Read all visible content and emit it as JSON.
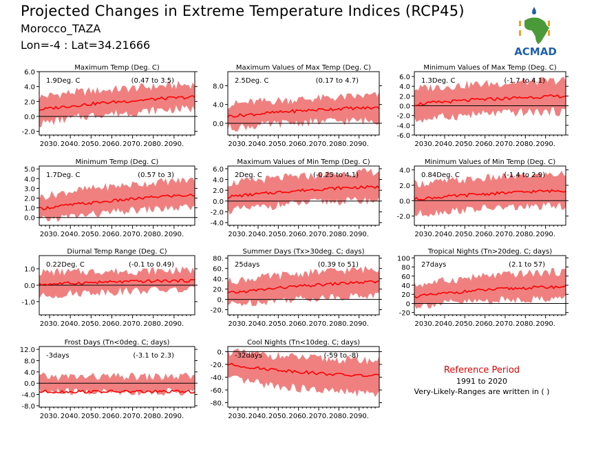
{
  "header": {
    "title": "Projected Changes in Extreme Temperature Indices (RCP45)",
    "subtitle": "Morocco_TAZA",
    "coords": "Lon=-4 : Lat=34.21666"
  },
  "logo": {
    "text": "ACMAD",
    "icon": "africa-map-icon"
  },
  "reference": {
    "title": "Reference Period",
    "period": "1991 to 2020",
    "note": "Very-Likely-Ranges are written in ( )"
  },
  "colors": {
    "band": "#f08080",
    "line": "#ff0000",
    "logo_green": "#4a9a3a",
    "logo_blue": "#1f5fa8",
    "logo_orange": "#f0a020"
  },
  "chart_data": [
    {
      "type": "area",
      "title": "Maximum Temp (Deg. C)",
      "value_label": "1.9Deg. C",
      "range_label": "(0.47 to 3.5)",
      "x_ticks": [
        "2030.",
        "2040.",
        "2050.",
        "2060.",
        "2070.",
        "2080.",
        "2090."
      ],
      "xlim": [
        2025,
        2100
      ],
      "y_ticks": [
        "-2.0",
        "0.0",
        "2.0",
        "4.0",
        "6.0"
      ],
      "ylim": [
        -2.5,
        6
      ],
      "series": [
        {
          "x": [
            2025,
            2040,
            2055,
            2070,
            2085,
            2100
          ],
          "mean": [
            0.9,
            1.4,
            1.8,
            2.1,
            2.4,
            2.6
          ],
          "lower": [
            -1.0,
            -0.3,
            0.3,
            0.5,
            0.9,
            1.0
          ],
          "upper": [
            2.6,
            3.2,
            3.5,
            3.8,
            4.1,
            4.3
          ]
        }
      ]
    },
    {
      "type": "area",
      "title": "Maximum Values of Max Temp (Deg. C)",
      "value_label": "2.5Deg. C",
      "range_label": "(0.17 to 4.7)",
      "x_ticks": [
        "2030.",
        "2040.",
        "2050.",
        "2060.",
        "2070.",
        "2080.",
        "2090."
      ],
      "xlim": [
        2025,
        2100
      ],
      "y_ticks": [
        "0.0",
        "4.0",
        "8.0"
      ],
      "ylim": [
        -2.5,
        11
      ],
      "series": [
        {
          "x": [
            2025,
            2040,
            2055,
            2070,
            2085,
            2100
          ],
          "mean": [
            1.5,
            2.0,
            2.5,
            2.9,
            3.2,
            3.3
          ],
          "lower": [
            -1.0,
            -0.5,
            0.0,
            0.3,
            0.5,
            0.5
          ],
          "upper": [
            4.0,
            4.6,
            5.0,
            5.3,
            5.6,
            6.0
          ]
        }
      ]
    },
    {
      "type": "area",
      "title": "Minimum Values of Max Temp (Deg. C)",
      "value_label": "1.3Deg. C",
      "range_label": "(-1.7 to 4.1)",
      "x_ticks": [
        "2030.",
        "2040.",
        "2050.",
        "2060.",
        "2070.",
        "2080.",
        "2090."
      ],
      "xlim": [
        2025,
        2100
      ],
      "y_ticks": [
        "-6.0",
        "-4.0",
        "-2.0",
        "0.0",
        "2.0",
        "4.0",
        "6.0"
      ],
      "ylim": [
        -6,
        7
      ],
      "series": [
        {
          "x": [
            2025,
            2040,
            2055,
            2070,
            2085,
            2100
          ],
          "mean": [
            0.3,
            0.8,
            1.2,
            1.5,
            1.8,
            2.0
          ],
          "lower": [
            -3.0,
            -2.3,
            -1.8,
            -1.5,
            -1.3,
            -1.2
          ],
          "upper": [
            3.5,
            4.0,
            4.4,
            4.7,
            5.0,
            5.2
          ]
        }
      ]
    },
    {
      "type": "area",
      "title": "Minimum Temp (Deg. C)",
      "value_label": "1.7Deg. C",
      "range_label": "(0.57 to 3)",
      "x_ticks": [
        "2030.",
        "2040.",
        "2050.",
        "2060.",
        "2070.",
        "2080.",
        "2090."
      ],
      "xlim": [
        2025,
        2100
      ],
      "y_ticks": [
        "0.0",
        "1.0",
        "2.0",
        "3.0",
        "4.0",
        "5.0"
      ],
      "ylim": [
        -0.8,
        5.3
      ],
      "series": [
        {
          "x": [
            2025,
            2040,
            2055,
            2070,
            2085,
            2100
          ],
          "mean": [
            0.9,
            1.3,
            1.6,
            1.9,
            2.2,
            2.3
          ],
          "lower": [
            -0.3,
            0.1,
            0.4,
            0.7,
            0.9,
            1.0
          ],
          "upper": [
            2.1,
            2.7,
            3.1,
            3.4,
            3.7,
            3.9
          ]
        }
      ]
    },
    {
      "type": "area",
      "title": "Maximum Values of Min Temp (Deg. C)",
      "value_label": "2Deg. C",
      "range_label": "(-0.25 to 4.1)",
      "x_ticks": [
        "2030.",
        "2040.",
        "2050.",
        "2060.",
        "2070.",
        "2080.",
        "2090."
      ],
      "xlim": [
        2025,
        2100
      ],
      "y_ticks": [
        "-4.0",
        "-2.0",
        "0.0",
        "2.0",
        "4.0",
        "6.0"
      ],
      "ylim": [
        -4.5,
        6.5
      ],
      "series": [
        {
          "x": [
            2025,
            2040,
            2055,
            2070,
            2085,
            2100
          ],
          "mean": [
            0.8,
            1.3,
            1.8,
            2.2,
            2.5,
            2.6
          ],
          "lower": [
            -1.8,
            -1.2,
            -0.6,
            -0.2,
            0.0,
            0.1
          ],
          "upper": [
            3.3,
            3.9,
            4.4,
            4.8,
            5.2,
            5.5
          ]
        }
      ]
    },
    {
      "type": "area",
      "title": "Minimum Values of Min Temp (Deg. C)",
      "value_label": "0.84Deg. C",
      "range_label": "(-1.4 to 2.9)",
      "x_ticks": [
        "2030.",
        "2040.",
        "2050.",
        "2060.",
        "2070.",
        "2080.",
        "2090."
      ],
      "xlim": [
        2025,
        2100
      ],
      "y_ticks": [
        "-2.0",
        "0.0",
        "2.0",
        "4.0"
      ],
      "ylim": [
        -3.2,
        4.5
      ],
      "series": [
        {
          "x": [
            2025,
            2040,
            2055,
            2070,
            2085,
            2100
          ],
          "mean": [
            0.2,
            0.5,
            0.8,
            1.0,
            1.2,
            1.3
          ],
          "lower": [
            -1.8,
            -1.4,
            -1.1,
            -0.9,
            -0.8,
            -0.7
          ],
          "upper": [
            2.2,
            2.5,
            2.8,
            3.1,
            3.3,
            3.5
          ]
        }
      ]
    },
    {
      "type": "area",
      "title": "Diurnal Temp Range (Deg. C)",
      "value_label": "0.22Deg. C",
      "range_label": "(-0.1 to 0.49)",
      "x_ticks": [
        "2030.",
        "2040.",
        "2050.",
        "2060.",
        "2070.",
        "2080.",
        "2090."
      ],
      "xlim": [
        2025,
        2100
      ],
      "y_ticks": [
        "-1.0",
        "0.0",
        "1.0"
      ],
      "ylim": [
        -1.8,
        1.8
      ],
      "series": [
        {
          "x": [
            2025,
            2040,
            2055,
            2070,
            2085,
            2100
          ],
          "mean": [
            0.05,
            0.12,
            0.18,
            0.22,
            0.26,
            0.28
          ],
          "lower": [
            -0.7,
            -0.5,
            -0.4,
            -0.35,
            -0.3,
            -0.3
          ],
          "upper": [
            0.8,
            0.8,
            0.85,
            0.85,
            0.9,
            0.9
          ]
        }
      ]
    },
    {
      "type": "area",
      "title": "Summer Days (Tx>30deg. C; days)",
      "value_label": "25days",
      "range_label": "(0.39 to 51)",
      "x_ticks": [
        "2030.",
        "2040.",
        "2050.",
        "2060.",
        "2070.",
        "2080.",
        "2090."
      ],
      "xlim": [
        2025,
        2100
      ],
      "y_ticks": [
        "-20.",
        "0.",
        "20.",
        "40.",
        "60.",
        "80."
      ],
      "ylim": [
        -30,
        85
      ],
      "series": [
        {
          "x": [
            2025,
            2040,
            2055,
            2070,
            2085,
            2100
          ],
          "mean": [
            12,
            18,
            24,
            28,
            32,
            34
          ],
          "lower": [
            -10,
            -5,
            0,
            3,
            6,
            8
          ],
          "upper": [
            35,
            42,
            48,
            53,
            57,
            60
          ]
        }
      ]
    },
    {
      "type": "area",
      "title": "Tropical Nights (Tn>20deg. C; days)",
      "value_label": "27days",
      "range_label": "(2.1 to 57)",
      "x_ticks": [
        "2030.",
        "2040.",
        "2050.",
        "2060.",
        "2070.",
        "2080.",
        "2090."
      ],
      "xlim": [
        2025,
        2100
      ],
      "y_ticks": [
        "-20",
        "0",
        "20",
        "40",
        "60",
        "80",
        "100"
      ],
      "ylim": [
        -25,
        105
      ],
      "series": [
        {
          "x": [
            2025,
            2040,
            2055,
            2070,
            2085,
            2100
          ],
          "mean": [
            15,
            22,
            28,
            32,
            35,
            37
          ],
          "lower": [
            -5,
            0,
            4,
            8,
            10,
            12
          ],
          "upper": [
            40,
            50,
            58,
            63,
            67,
            70
          ]
        }
      ]
    },
    {
      "type": "area",
      "title": "Frost Days (Tn<0deg. C; days)",
      "value_label": "-3days",
      "range_label": "(-3.1 to 2.3)",
      "x_ticks": [
        "2030.",
        "2040.",
        "2050.",
        "2060.",
        "2070.",
        "2080.",
        "2090."
      ],
      "xlim": [
        2025,
        2100
      ],
      "y_ticks": [
        "-8.0",
        "-4.0",
        "0.0",
        "4.0",
        "8.0",
        "12.0"
      ],
      "ylim": [
        -8.5,
        13
      ],
      "series": [
        {
          "x": [
            2025,
            2040,
            2055,
            2070,
            2085,
            2100
          ],
          "mean": [
            -3,
            -3,
            -3,
            -3,
            -3,
            -3
          ],
          "lower": [
            -3.1,
            -3.1,
            -3.1,
            -3.1,
            -3.1,
            -3.1
          ],
          "upper": [
            2.3,
            2.3,
            2.3,
            2.3,
            2.3,
            2.3
          ]
        }
      ]
    },
    {
      "type": "area",
      "title": "Cool Nights (Tn<10deg. C; days)",
      "value_label": "-32days",
      "range_label": "(-59 to -8)",
      "x_ticks": [
        "2030.",
        "2040.",
        "2050.",
        "2060.",
        "2070.",
        "2080.",
        "2090."
      ],
      "xlim": [
        2025,
        2100
      ],
      "y_ticks": [
        "-80.",
        "-60.",
        "-40.",
        "-20.",
        "0."
      ],
      "ylim": [
        -87,
        8
      ],
      "series": [
        {
          "x": [
            2025,
            2040,
            2055,
            2070,
            2085,
            2100
          ],
          "mean": [
            -20,
            -26,
            -30,
            -34,
            -37,
            -38
          ],
          "lower": [
            -42,
            -50,
            -56,
            -61,
            -64,
            -66
          ],
          "upper": [
            0,
            -4,
            -8,
            -11,
            -13,
            -14
          ]
        }
      ]
    }
  ]
}
